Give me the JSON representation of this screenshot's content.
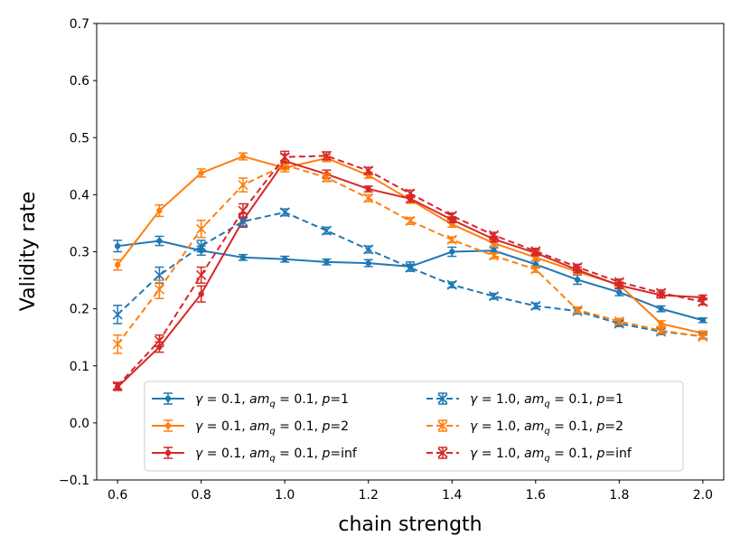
{
  "chart_data": {
    "type": "line",
    "title": "",
    "xlabel": "chain strength",
    "ylabel": "Validity rate",
    "xlim": [
      0.55,
      2.05
    ],
    "ylim": [
      -0.1,
      0.7
    ],
    "xticks": [
      "0.6",
      "0.8",
      "1.0",
      "1.2",
      "1.4",
      "1.6",
      "1.8",
      "2.0"
    ],
    "yticks": [
      "−0.1",
      "0.0",
      "0.1",
      "0.2",
      "0.3",
      "0.4",
      "0.5",
      "0.6",
      "0.7"
    ],
    "x": [
      0.6,
      0.7,
      0.8,
      0.9,
      1.0,
      1.1,
      1.2,
      1.3,
      1.4,
      1.5,
      1.6,
      1.7,
      1.8,
      1.9,
      2.0
    ],
    "legend_position": "lower-center",
    "series": [
      {
        "name": "γ = 0.1, am_q = 0.1, p=1",
        "label": {
          "gamma": "0.1",
          "amq": "0.1",
          "p": "1"
        },
        "color": "#1f77b4",
        "style": "solid",
        "marker": "dot",
        "values": [
          0.31,
          0.319,
          0.302,
          0.29,
          0.287,
          0.282,
          0.28,
          0.274,
          0.3,
          0.302,
          0.278,
          0.251,
          0.229,
          0.2,
          0.18
        ],
        "errors": [
          0.01,
          0.008,
          0.008,
          0.005,
          0.005,
          0.005,
          0.006,
          0.008,
          0.008,
          0.005,
          0.006,
          0.008,
          0.006,
          0.005,
          0.004
        ]
      },
      {
        "name": "γ = 0.1, am_q = 0.1, p=2",
        "label": {
          "gamma": "0.1",
          "amq": "0.1",
          "p": "2"
        },
        "color": "#ff7f0e",
        "style": "solid",
        "marker": "dot",
        "values": [
          0.277,
          0.372,
          0.438,
          0.467,
          0.447,
          0.464,
          0.434,
          0.391,
          0.348,
          0.315,
          0.29,
          0.265,
          0.242,
          0.174,
          0.157
        ],
        "errors": [
          0.009,
          0.01,
          0.007,
          0.006,
          0.007,
          0.006,
          0.005,
          0.006,
          0.005,
          0.005,
          0.005,
          0.005,
          0.005,
          0.005,
          0.004
        ]
      },
      {
        "name": "γ = 0.1, am_q = 0.1, p=inf",
        "label": {
          "gamma": "0.1",
          "amq": "0.1",
          "p": "inf"
        },
        "color": "#d62728",
        "style": "solid",
        "marker": "dot",
        "values": [
          0.063,
          0.133,
          0.226,
          0.355,
          0.459,
          0.436,
          0.41,
          0.393,
          0.356,
          0.322,
          0.298,
          0.268,
          0.241,
          0.224,
          0.22
        ],
        "errors": [
          0.006,
          0.009,
          0.014,
          0.012,
          0.012,
          0.007,
          0.005,
          0.006,
          0.005,
          0.005,
          0.005,
          0.005,
          0.005,
          0.005,
          0.004
        ]
      },
      {
        "name": "γ = 1.0, am_q = 0.1, p=1",
        "label": {
          "gamma": "1.0",
          "amq": "0.1",
          "p": "1"
        },
        "color": "#1f77b4",
        "style": "dashed",
        "marker": "x",
        "values": [
          0.19,
          0.259,
          0.31,
          0.353,
          0.369,
          0.337,
          0.304,
          0.272,
          0.242,
          0.222,
          0.205,
          0.196,
          0.174,
          0.16,
          0.152
        ],
        "errors": [
          0.016,
          0.014,
          0.01,
          0.008,
          0.006,
          0.006,
          0.006,
          0.006,
          0.005,
          0.005,
          0.005,
          0.005,
          0.005,
          0.005,
          0.004
        ]
      },
      {
        "name": "γ = 1.0, am_q = 0.1, p=2",
        "label": {
          "gamma": "1.0",
          "amq": "0.1",
          "p": "2"
        },
        "color": "#ff7f0e",
        "style": "dashed",
        "marker": "x",
        "values": [
          0.138,
          0.234,
          0.34,
          0.417,
          0.452,
          0.43,
          0.394,
          0.354,
          0.321,
          0.293,
          0.269,
          0.198,
          0.178,
          0.162,
          0.151
        ],
        "errors": [
          0.016,
          0.016,
          0.015,
          0.012,
          0.008,
          0.007,
          0.006,
          0.006,
          0.005,
          0.005,
          0.005,
          0.005,
          0.005,
          0.005,
          0.004
        ]
      },
      {
        "name": "γ = 1.0, am_q = 0.1, p=inf",
        "label": {
          "gamma": "1.0",
          "amq": "0.1",
          "p": "inf"
        },
        "color": "#d62728",
        "style": "dashed",
        "marker": "x",
        "values": [
          0.065,
          0.144,
          0.259,
          0.372,
          0.466,
          0.468,
          0.442,
          0.402,
          0.363,
          0.329,
          0.301,
          0.273,
          0.247,
          0.228,
          0.212
        ],
        "errors": [
          0.006,
          0.01,
          0.014,
          0.012,
          0.01,
          0.007,
          0.006,
          0.006,
          0.005,
          0.005,
          0.005,
          0.005,
          0.005,
          0.005,
          0.005
        ]
      }
    ]
  }
}
